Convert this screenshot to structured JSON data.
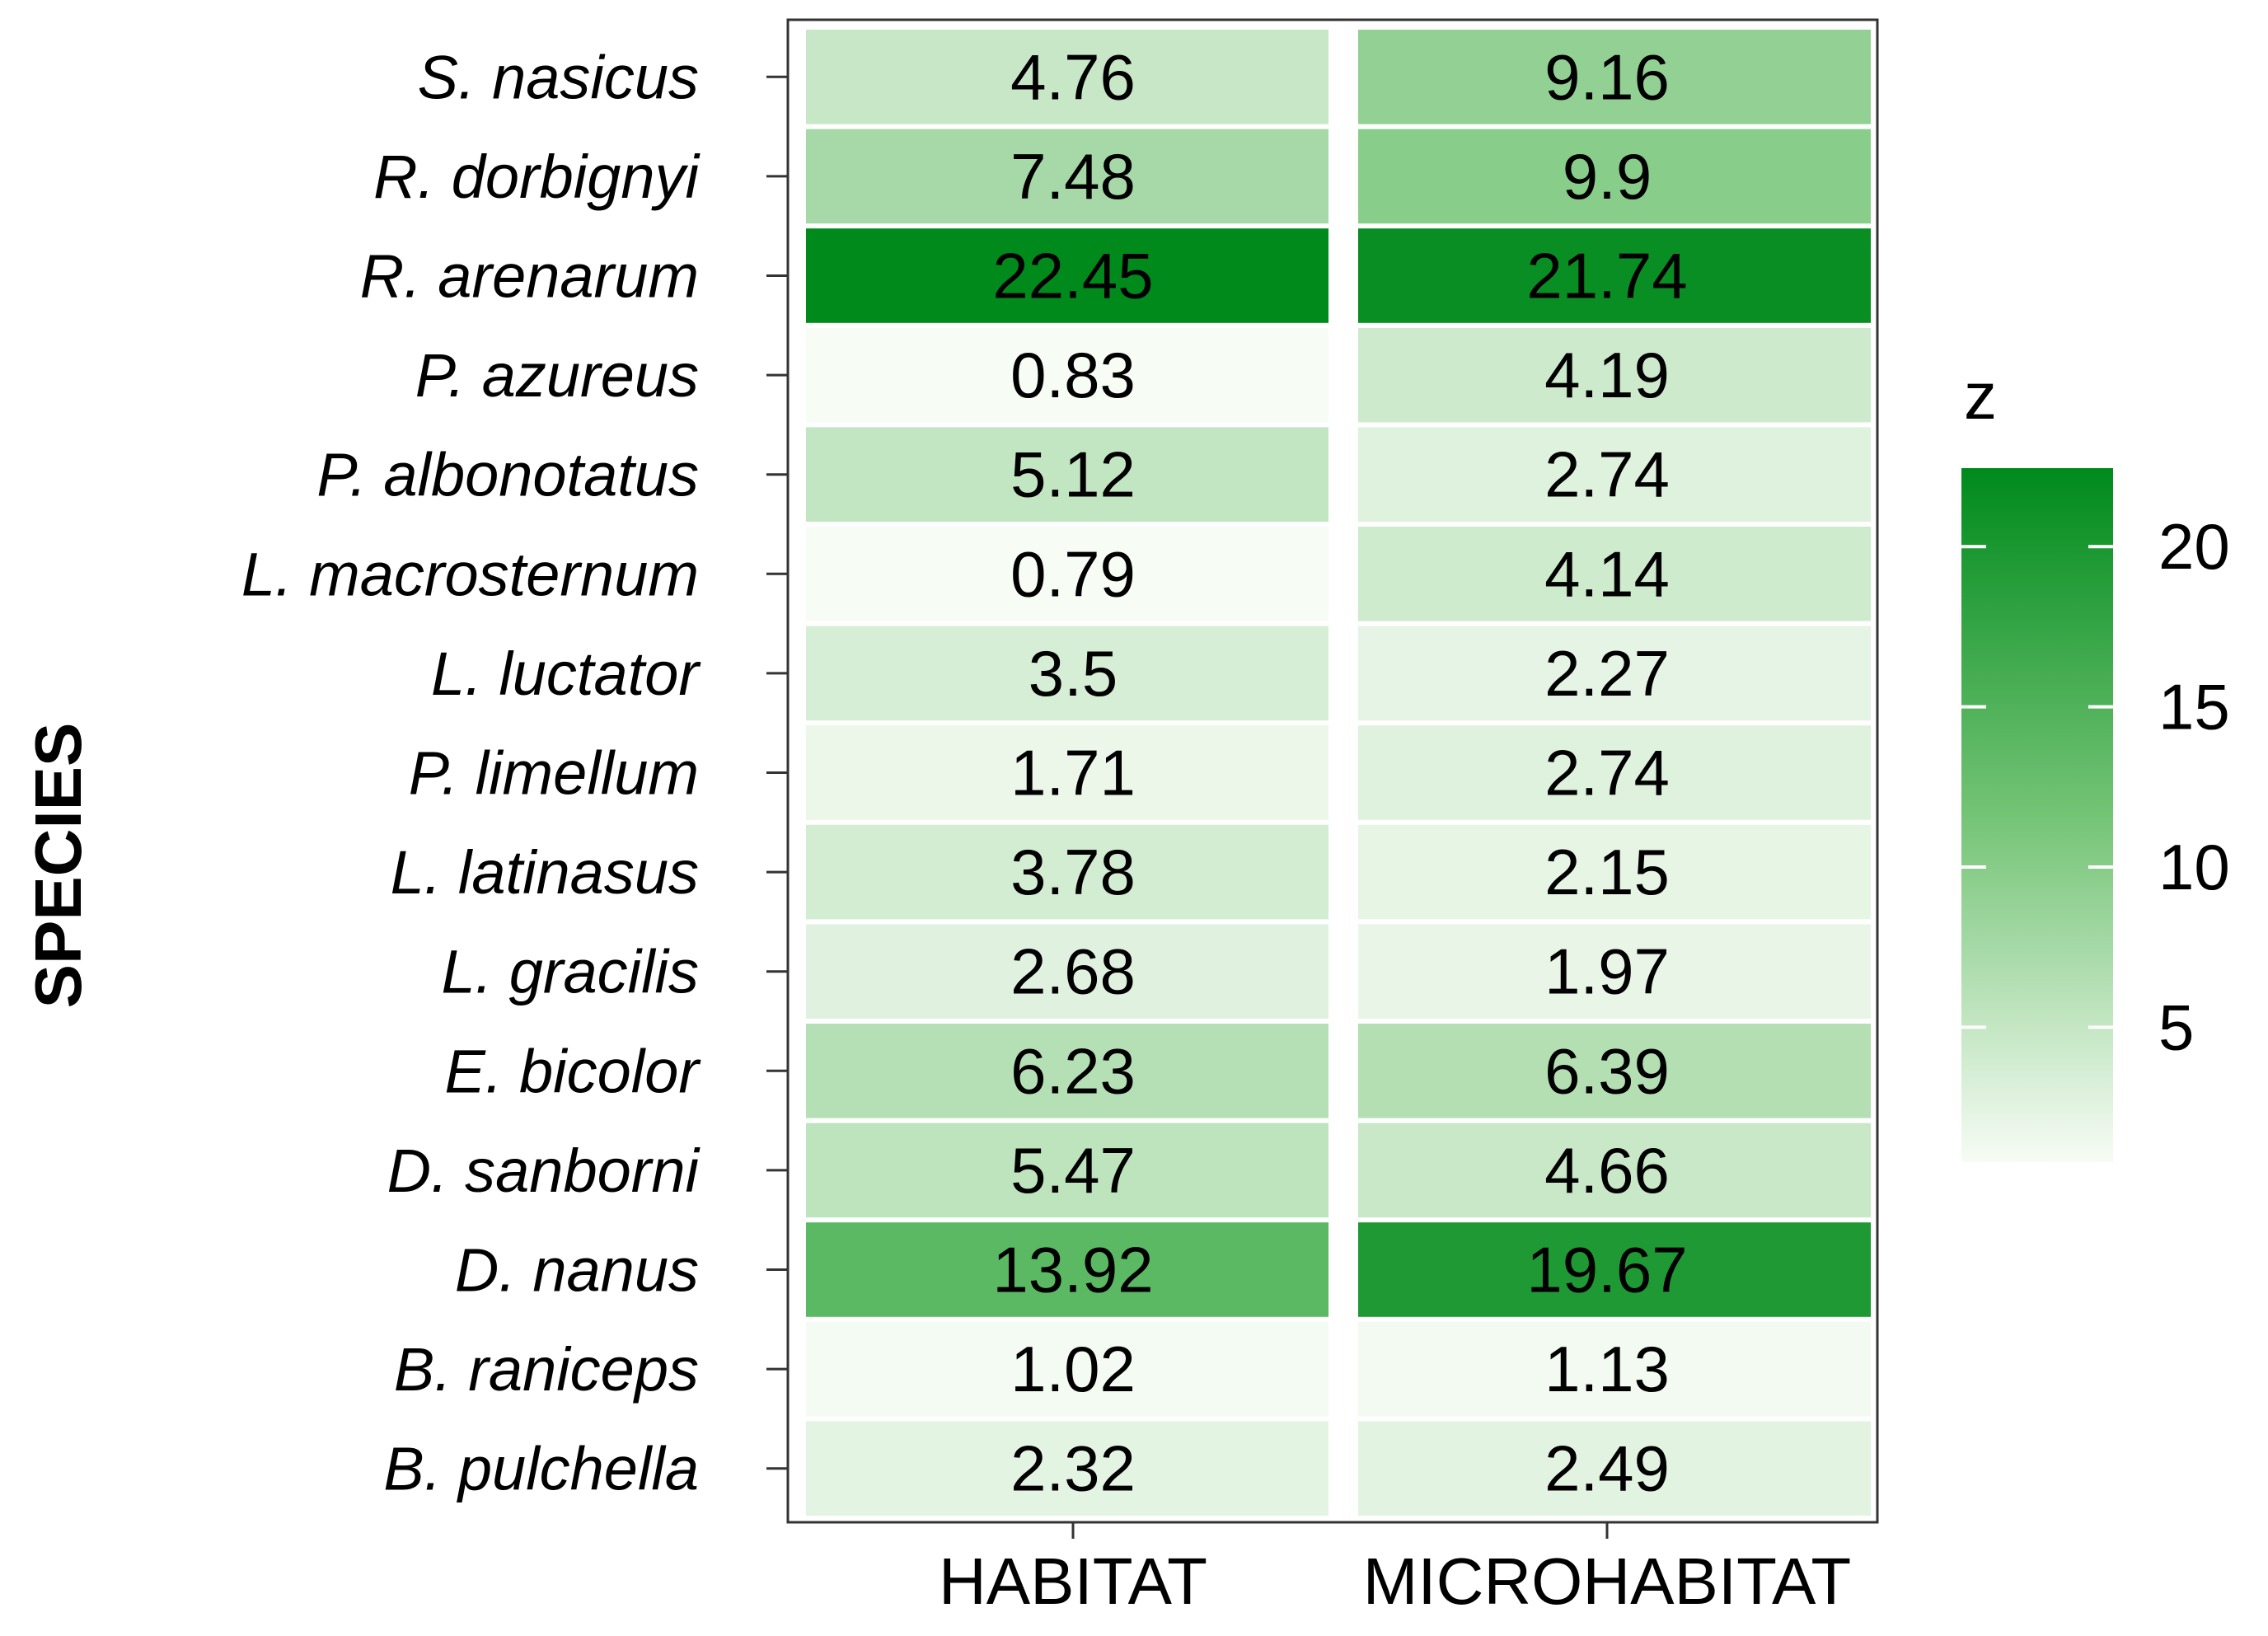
{
  "chart_data": {
    "type": "heatmap",
    "ylabel": "SPECIES",
    "xlabel": "",
    "columns": [
      "HABITAT",
      "MICROHABITAT"
    ],
    "rows": [
      "S. nasicus",
      "R. dorbignyi",
      "R. arenarum",
      "P. azureus",
      "P. albonotatus",
      "L. macrosternum",
      "L. luctator",
      "P. limellum",
      "L. latinasus",
      "L. gracilis",
      "E. bicolor",
      "D. sanborni",
      "D. nanus",
      "B. raniceps",
      "B. pulchella"
    ],
    "values": [
      [
        4.76,
        9.16
      ],
      [
        7.48,
        9.9
      ],
      [
        22.45,
        21.74
      ],
      [
        0.83,
        4.19
      ],
      [
        5.12,
        2.74
      ],
      [
        0.79,
        4.14
      ],
      [
        3.5,
        2.27
      ],
      [
        1.71,
        2.74
      ],
      [
        3.78,
        2.15
      ],
      [
        2.68,
        1.97
      ],
      [
        6.23,
        6.39
      ],
      [
        5.47,
        4.66
      ],
      [
        13.92,
        19.67
      ],
      [
        1.02,
        1.13
      ],
      [
        2.32,
        2.49
      ]
    ],
    "value_labels": [
      [
        "4.76",
        "9.16"
      ],
      [
        "7.48",
        "9.9"
      ],
      [
        "22.45",
        "21.74"
      ],
      [
        "0.83",
        "4.19"
      ],
      [
        "5.12",
        "2.74"
      ],
      [
        "0.79",
        "4.14"
      ],
      [
        "3.5",
        "2.27"
      ],
      [
        "1.71",
        "2.74"
      ],
      [
        "3.78",
        "2.15"
      ],
      [
        "2.68",
        "1.97"
      ],
      [
        "6.23",
        "6.39"
      ],
      [
        "5.47",
        "4.66"
      ],
      [
        "13.92",
        "19.67"
      ],
      [
        "1.02",
        "1.13"
      ],
      [
        "2.32",
        "2.49"
      ]
    ],
    "legend": {
      "title": "z",
      "ticks": [
        5,
        10,
        15,
        20
      ],
      "range": [
        0.79,
        22.45
      ],
      "position": "right"
    },
    "color_scale": {
      "low": "#f7fcf5",
      "mid": "#74c476",
      "high": "#008a1c"
    },
    "grid": false
  }
}
